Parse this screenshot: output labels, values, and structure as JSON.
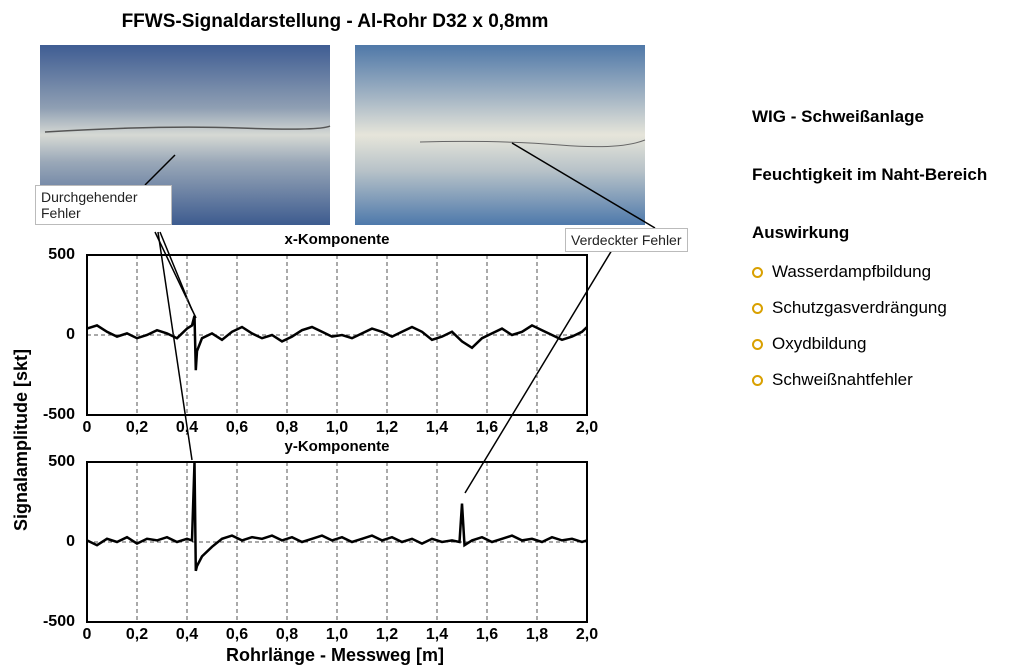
{
  "title": "FFWS-Signaldarstellung  -  Al-Rohr D32 x 0,8mm",
  "annotations": {
    "left": "Durchgehender Fehler",
    "right": "Verdeckter Fehler"
  },
  "y_label": "Signalamplitude [skt]",
  "x_label": "Rohrlänge - Messweg [m]",
  "info": {
    "heading1": "WIG - Schweißanlage",
    "heading2": "Feuchtigkeit im Naht-Bereich",
    "heading3": "Auswirkung",
    "bullets": [
      "Wasserdampfbildung",
      "Schutzgasverdrängung",
      "Oxydbildung",
      "Schweißnahtfehler"
    ]
  },
  "chart_data": [
    {
      "type": "line",
      "title": "x-Komponente",
      "color": "#000000",
      "x": [
        0,
        0.04,
        0.08,
        0.12,
        0.16,
        0.2,
        0.24,
        0.28,
        0.32,
        0.36,
        0.4,
        0.42,
        0.43,
        0.435,
        0.44,
        0.46,
        0.5,
        0.54,
        0.58,
        0.62,
        0.66,
        0.7,
        0.74,
        0.78,
        0.82,
        0.86,
        0.9,
        0.94,
        0.98,
        1.02,
        1.06,
        1.1,
        1.14,
        1.18,
        1.22,
        1.26,
        1.3,
        1.34,
        1.38,
        1.42,
        1.46,
        1.5,
        1.54,
        1.58,
        1.62,
        1.66,
        1.7,
        1.74,
        1.78,
        1.82,
        1.86,
        1.9,
        1.94,
        1.98,
        2.0
      ],
      "values": [
        40,
        60,
        20,
        -10,
        10,
        -20,
        0,
        30,
        10,
        -20,
        40,
        60,
        120,
        -220,
        -100,
        -20,
        10,
        -30,
        20,
        50,
        10,
        -20,
        0,
        -40,
        -10,
        30,
        50,
        20,
        -10,
        0,
        -20,
        10,
        40,
        20,
        -10,
        20,
        50,
        20,
        -30,
        -10,
        20,
        -40,
        -80,
        -20,
        10,
        40,
        0,
        20,
        60,
        30,
        0,
        -30,
        -10,
        20,
        50
      ],
      "xlim": [
        0,
        2
      ],
      "xticks": [
        0,
        {
          "value": 0.2,
          "label": "0,2"
        },
        {
          "value": 0.4,
          "label": "0,4"
        },
        {
          "value": 0.6,
          "label": "0,6"
        },
        {
          "value": 0.8,
          "label": "0,8"
        },
        {
          "value": 1.0,
          "label": "1,0"
        },
        {
          "value": 1.2,
          "label": "1,2"
        },
        {
          "value": 1.4,
          "label": "1,4"
        },
        {
          "value": 1.6,
          "label": "1,6"
        },
        {
          "value": 1.8,
          "label": "1,8"
        },
        {
          "value": 2.0,
          "label": "2,0"
        }
      ],
      "ylim": [
        -500,
        500
      ],
      "yticks": [
        -500,
        0,
        500
      ],
      "grid": true
    },
    {
      "type": "line",
      "title": "y-Komponente",
      "color": "#000000",
      "x": [
        0,
        0.04,
        0.08,
        0.12,
        0.16,
        0.2,
        0.24,
        0.28,
        0.32,
        0.36,
        0.4,
        0.42,
        0.43,
        0.435,
        0.44,
        0.46,
        0.5,
        0.54,
        0.58,
        0.62,
        0.66,
        0.7,
        0.74,
        0.78,
        0.82,
        0.86,
        0.9,
        0.94,
        0.98,
        1.02,
        1.06,
        1.1,
        1.14,
        1.18,
        1.22,
        1.26,
        1.3,
        1.34,
        1.38,
        1.42,
        1.46,
        1.49,
        1.5,
        1.51,
        1.54,
        1.58,
        1.62,
        1.66,
        1.7,
        1.74,
        1.78,
        1.82,
        1.86,
        1.9,
        1.94,
        1.98,
        2.0
      ],
      "values": [
        10,
        -20,
        20,
        0,
        30,
        -10,
        20,
        10,
        30,
        0,
        20,
        10,
        500,
        -180,
        -150,
        -90,
        -30,
        20,
        40,
        10,
        30,
        20,
        40,
        10,
        30,
        0,
        20,
        40,
        10,
        30,
        0,
        20,
        40,
        10,
        30,
        0,
        20,
        -10,
        20,
        0,
        10,
        0,
        240,
        -20,
        10,
        30,
        0,
        20,
        40,
        10,
        20,
        0,
        30,
        10,
        20,
        0,
        10
      ],
      "xlim": [
        0,
        2
      ],
      "xticks": [
        0,
        {
          "value": 0.2,
          "label": "0,2"
        },
        {
          "value": 0.4,
          "label": "0,4"
        },
        {
          "value": 0.6,
          "label": "0,6"
        },
        {
          "value": 0.8,
          "label": "0,8"
        },
        {
          "value": 1.0,
          "label": "1,0"
        },
        {
          "value": 1.2,
          "label": "1,2"
        },
        {
          "value": 1.4,
          "label": "1,4"
        },
        {
          "value": 1.6,
          "label": "1,6"
        },
        {
          "value": 1.8,
          "label": "1,8"
        },
        {
          "value": 2.0,
          "label": "2,0"
        }
      ],
      "ylim": [
        -500,
        500
      ],
      "yticks": [
        -500,
        0,
        500
      ],
      "grid": true
    }
  ]
}
